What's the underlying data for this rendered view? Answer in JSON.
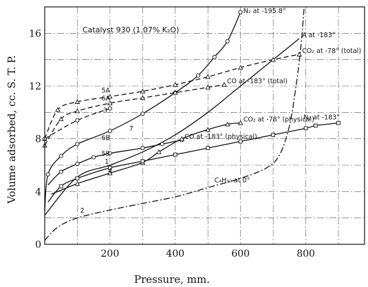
{
  "chart_data": {
    "type": "line",
    "title": "",
    "xlabel": "Pressure, mm.",
    "ylabel": "Volume adsorbed, cc. S. T. P.",
    "xlim": [
      0,
      980
    ],
    "ylim": [
      0,
      18
    ],
    "xticks": [
      200,
      400,
      600,
      800
    ],
    "yticks": [
      0,
      4,
      8,
      12,
      16
    ],
    "grid": true,
    "legend": "none",
    "annotation": "Catalyst 930 (1.07% K₂O)",
    "series": [
      {
        "name": "N₂ at -195.8°",
        "label": "N₂ at -195.8°",
        "style": "solid",
        "marker": "circle",
        "color": "#111111",
        "points": [
          [
            0,
            2.5
          ],
          [
            10,
            5.3
          ],
          [
            50,
            6.7
          ],
          [
            100,
            7.6
          ],
          [
            200,
            8.6
          ],
          [
            300,
            9.9
          ],
          [
            400,
            11.5
          ],
          [
            470,
            12.8
          ],
          [
            520,
            14.2
          ],
          [
            560,
            15.4
          ],
          [
            600,
            17.6
          ]
        ]
      },
      {
        "name": "A at -183°",
        "label": "A at -183°",
        "style": "solid",
        "marker": "none",
        "color": "#111111",
        "points": [
          [
            0,
            2.2
          ],
          [
            100,
            5.1
          ],
          [
            200,
            6.0
          ],
          [
            300,
            7.0
          ],
          [
            400,
            8.3
          ],
          [
            500,
            10.0
          ],
          [
            580,
            11.6
          ],
          [
            640,
            12.8
          ],
          [
            720,
            14.4
          ],
          [
            780,
            15.6
          ]
        ]
      },
      {
        "name": "CO₂ at -78° (total)",
        "label": "CO₂ at -78° (total)",
        "style": "dashed",
        "marker": "triangle",
        "color": "#111111",
        "points": [
          [
            0,
            8.0
          ],
          [
            40,
            10.2
          ],
          [
            100,
            10.8
          ],
          [
            200,
            11.2
          ],
          [
            300,
            11.6
          ],
          [
            400,
            12.1
          ],
          [
            500,
            12.7
          ],
          [
            600,
            13.4
          ],
          [
            700,
            14.0
          ],
          [
            780,
            14.4
          ]
        ]
      },
      {
        "name": "CO at -183° (total)",
        "label": "CO at -183° (total)",
        "style": "dashed",
        "marker": "triangle",
        "color": "#111111",
        "points": [
          [
            0,
            7.5
          ],
          [
            50,
            9.5
          ],
          [
            100,
            10.1
          ],
          [
            200,
            10.7
          ],
          [
            300,
            11.1
          ],
          [
            400,
            11.5
          ],
          [
            500,
            11.9
          ],
          [
            550,
            12.1
          ]
        ]
      },
      {
        "name": "CO at -183° (physical)",
        "label": "CO at -183° (physical)",
        "style": "solid",
        "marker": "circle",
        "color": "#111111",
        "points": [
          [
            10,
            4.5
          ],
          [
            50,
            5.5
          ],
          [
            100,
            6.1
          ],
          [
            150,
            6.6
          ],
          [
            200,
            6.9
          ],
          [
            300,
            7.3
          ],
          [
            360,
            7.6
          ],
          [
            420,
            7.9
          ]
        ]
      },
      {
        "name": "CO₂ at -78° (physical)",
        "label": "CO₂ at -78° (physical)",
        "style": "solid",
        "marker": "triangle",
        "color": "#111111",
        "points": [
          [
            20,
            3.8
          ],
          [
            100,
            4.6
          ],
          [
            200,
            5.4
          ],
          [
            300,
            6.2
          ],
          [
            350,
            7.0
          ],
          [
            420,
            8.0
          ],
          [
            500,
            8.7
          ],
          [
            560,
            9.1
          ],
          [
            600,
            9.2
          ]
        ]
      },
      {
        "name": "N₂ at -183°",
        "label": "N₂ at -183°",
        "style": "solid",
        "marker": "square",
        "color": "#111111",
        "points": [
          [
            10,
            3.2
          ],
          [
            50,
            4.4
          ],
          [
            100,
            5.0
          ],
          [
            200,
            5.8
          ],
          [
            300,
            6.3
          ],
          [
            400,
            6.8
          ],
          [
            500,
            7.3
          ],
          [
            600,
            7.8
          ],
          [
            700,
            8.3
          ],
          [
            800,
            8.8
          ],
          [
            830,
            9.0
          ],
          [
            900,
            9.2
          ]
        ]
      },
      {
        "name": "C₄H₁₀ at 0°",
        "label": "C₄H₁₀ at 0°",
        "style": "dashdot",
        "marker": "none",
        "color": "#111111",
        "points": [
          [
            0,
            0.3
          ],
          [
            40,
            1.3
          ],
          [
            100,
            2.0
          ],
          [
            200,
            2.6
          ],
          [
            300,
            3.1
          ],
          [
            400,
            3.6
          ],
          [
            500,
            4.3
          ],
          [
            600,
            5.0
          ],
          [
            680,
            5.8
          ],
          [
            720,
            6.8
          ],
          [
            750,
            9.0
          ],
          [
            770,
            12.0
          ],
          [
            785,
            15.0
          ],
          [
            795,
            18.0
          ]
        ]
      },
      {
        "name": "",
        "label": "",
        "style": "dashed",
        "marker": "circle",
        "color": "#111111",
        "points": [
          [
            0,
            8.0
          ],
          [
            100,
            9.4
          ],
          [
            200,
            10.3
          ]
        ]
      }
    ],
    "curve_numbers": [
      {
        "text": "1",
        "at": [
          205,
          6.1
        ]
      },
      {
        "text": "2",
        "at": [
          130,
          2.4
        ]
      },
      {
        "text": "3",
        "at": [
          200,
          10.0
        ]
      },
      {
        "text": "4",
        "at": [
          215,
          5.4
        ]
      },
      {
        "text": "5A",
        "at": [
          195,
          11.5
        ]
      },
      {
        "text": "5B",
        "at": [
          195,
          6.7
        ]
      },
      {
        "text": "6A",
        "at": [
          195,
          10.9
        ]
      },
      {
        "text": "6B",
        "at": [
          195,
          7.9
        ]
      },
      {
        "text": "7",
        "at": [
          280,
          8.6
        ]
      }
    ]
  }
}
